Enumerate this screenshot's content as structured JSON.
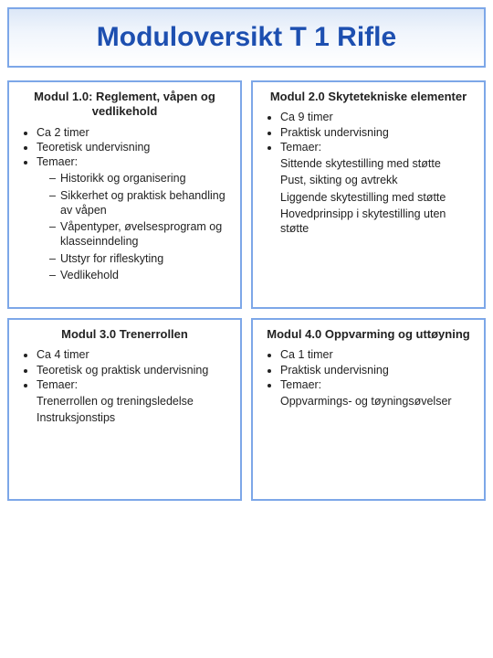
{
  "title": "Moduloversikt T 1 Rifle",
  "modules": [
    {
      "title": "Modul 1.0:  Reglement, våpen og vedlikehold",
      "bullets": [
        {
          "text": "Ca 2 timer"
        },
        {
          "text": "Teoretisk undervisning"
        },
        {
          "text": "Temaer:",
          "sub_dashed": [
            "Historikk og organisering",
            "Sikkerhet og praktisk behandling av våpen",
            "Våpentyper, øvelsesprogram og klasseinndeling",
            "Utstyr for rifleskyting",
            "Vedlikehold"
          ]
        }
      ]
    },
    {
      "title": "Modul 2.0  Skytetekniske elementer",
      "bullets": [
        {
          "text": "Ca 9 timer"
        },
        {
          "text": "Praktisk undervisning"
        },
        {
          "text": "Temaer:",
          "sub_plain": [
            "Sittende skytestilling med støtte",
            "Pust, sikting og avtrekk",
            "Liggende skytestilling med støtte",
            "Hovedprinsipp i skytestilling uten støtte"
          ]
        }
      ]
    },
    {
      "title": "Modul 3.0 Trenerrollen",
      "bullets": [
        {
          "text": "Ca 4 timer"
        },
        {
          "text": "Teoretisk og praktisk undervisning"
        },
        {
          "text": "Temaer:",
          "sub_plain": [
            "Trenerrollen og treningsledelse",
            "Instruksjonstips"
          ]
        }
      ]
    },
    {
      "title": "Modul 4.0 Oppvarming og uttøyning",
      "bullets": [
        {
          "text": "Ca 1 timer"
        },
        {
          "text": "Praktisk undervisning"
        },
        {
          "text": "Temaer:",
          "sub_plain": [
            "Oppvarmings- og tøyningsøvelser"
          ]
        }
      ]
    }
  ],
  "colors": {
    "border": "#7da7e8",
    "title_text": "#1d4fb0",
    "gradient_top": "#dce7f7",
    "gradient_mid": "#f0f5fc",
    "gradient_bottom": "#ffffff",
    "body_text": "#222222"
  }
}
